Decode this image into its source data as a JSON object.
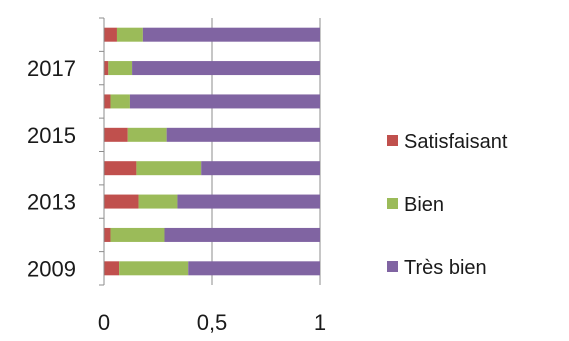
{
  "chart_data": {
    "type": "bar",
    "orientation": "horizontal",
    "stacked": true,
    "title": "",
    "xlabel": "",
    "ylabel": "",
    "xlim": [
      0,
      1
    ],
    "x_ticks": [
      0,
      0.5,
      1
    ],
    "x_tick_labels": [
      "0",
      "0,5",
      "1"
    ],
    "grid": true,
    "legend_position": "right",
    "categories": [
      "2009",
      "",
      "2013",
      "",
      "2015",
      "",
      "2017",
      ""
    ],
    "category_labels": [
      "2009",
      "2013",
      "2015",
      "2017"
    ],
    "series": [
      {
        "name": "Satisfaisant",
        "color": "#c0504d",
        "values": [
          0.07,
          0.03,
          0.16,
          0.15,
          0.11,
          0.03,
          0.02,
          0.06
        ]
      },
      {
        "name": "Bien",
        "color": "#9bbb59",
        "values": [
          0.32,
          0.25,
          0.18,
          0.3,
          0.18,
          0.09,
          0.11,
          0.12
        ]
      },
      {
        "name": "Très bien",
        "color": "#8064a2",
        "values": [
          0.61,
          0.72,
          0.66,
          0.55,
          0.71,
          0.88,
          0.87,
          0.82
        ]
      }
    ]
  }
}
